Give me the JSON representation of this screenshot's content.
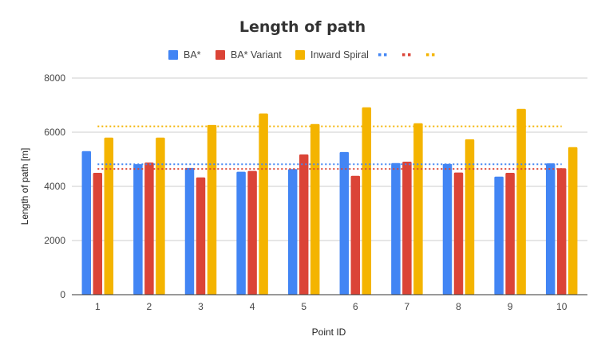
{
  "chart_data": {
    "type": "bar",
    "title": "Length of path",
    "xlabel": "Point ID",
    "ylabel": "Length of path [m]",
    "categories": [
      "1",
      "2",
      "3",
      "4",
      "5",
      "6",
      "7",
      "8",
      "9",
      "10"
    ],
    "ylim": [
      0,
      8000
    ],
    "yticks": [
      "0",
      "2000",
      "4000",
      "6000",
      "8000"
    ],
    "grid": true,
    "legend_position": "top",
    "series": [
      {
        "name": "BA*",
        "color": "#4285f4",
        "values": [
          5300,
          4820,
          4680,
          4540,
          4640,
          5270,
          4860,
          4830,
          4360,
          4850
        ]
      },
      {
        "name": "BA* Variant",
        "color": "#db4437",
        "values": [
          4500,
          4880,
          4330,
          4570,
          5180,
          4390,
          4910,
          4510,
          4500,
          4670
        ]
      },
      {
        "name": "Inward Spiral",
        "color": "#f4b400",
        "values": [
          5800,
          5800,
          6270,
          6690,
          6300,
          6920,
          6330,
          5740,
          6860,
          5450
        ]
      }
    ],
    "average_lines": [
      {
        "series": "BA*",
        "color": "#4285f4",
        "value": 4815
      },
      {
        "series": "BA* Variant",
        "color": "#db4437",
        "value": 4644
      },
      {
        "series": "Inward Spiral",
        "color": "#f4b400",
        "value": 6216
      }
    ]
  }
}
